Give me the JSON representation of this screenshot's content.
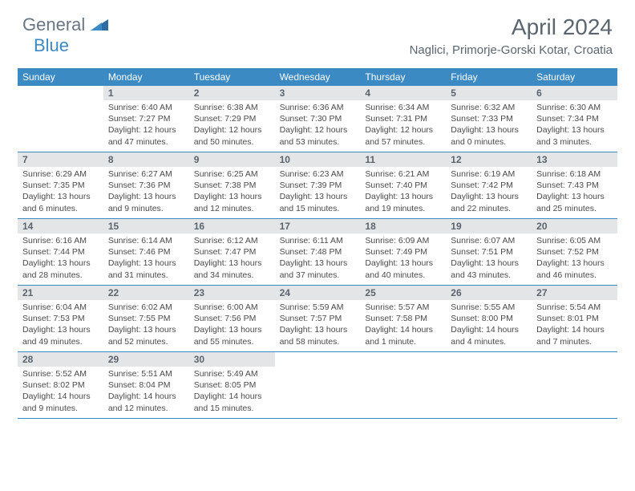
{
  "logo": {
    "text1": "General",
    "text2": "Blue"
  },
  "title": "April 2024",
  "location": "Naglici, Primorje-Gorski Kotar, Croatia",
  "colors": {
    "header_bg": "#3b8ac4",
    "header_text": "#ffffff",
    "day_num_bg": "#e3e5e7",
    "day_num_text": "#5a6570",
    "body_text": "#4a4a4a",
    "title_text": "#5a6570",
    "logo_gray": "#687684",
    "logo_blue": "#3b8ac4",
    "row_border": "#3b8ac4"
  },
  "dayNames": [
    "Sunday",
    "Monday",
    "Tuesday",
    "Wednesday",
    "Thursday",
    "Friday",
    "Saturday"
  ],
  "weeks": [
    [
      {
        "num": "",
        "lines": []
      },
      {
        "num": "1",
        "lines": [
          "Sunrise: 6:40 AM",
          "Sunset: 7:27 PM",
          "Daylight: 12 hours",
          "and 47 minutes."
        ]
      },
      {
        "num": "2",
        "lines": [
          "Sunrise: 6:38 AM",
          "Sunset: 7:29 PM",
          "Daylight: 12 hours",
          "and 50 minutes."
        ]
      },
      {
        "num": "3",
        "lines": [
          "Sunrise: 6:36 AM",
          "Sunset: 7:30 PM",
          "Daylight: 12 hours",
          "and 53 minutes."
        ]
      },
      {
        "num": "4",
        "lines": [
          "Sunrise: 6:34 AM",
          "Sunset: 7:31 PM",
          "Daylight: 12 hours",
          "and 57 minutes."
        ]
      },
      {
        "num": "5",
        "lines": [
          "Sunrise: 6:32 AM",
          "Sunset: 7:33 PM",
          "Daylight: 13 hours",
          "and 0 minutes."
        ]
      },
      {
        "num": "6",
        "lines": [
          "Sunrise: 6:30 AM",
          "Sunset: 7:34 PM",
          "Daylight: 13 hours",
          "and 3 minutes."
        ]
      }
    ],
    [
      {
        "num": "7",
        "lines": [
          "Sunrise: 6:29 AM",
          "Sunset: 7:35 PM",
          "Daylight: 13 hours",
          "and 6 minutes."
        ]
      },
      {
        "num": "8",
        "lines": [
          "Sunrise: 6:27 AM",
          "Sunset: 7:36 PM",
          "Daylight: 13 hours",
          "and 9 minutes."
        ]
      },
      {
        "num": "9",
        "lines": [
          "Sunrise: 6:25 AM",
          "Sunset: 7:38 PM",
          "Daylight: 13 hours",
          "and 12 minutes."
        ]
      },
      {
        "num": "10",
        "lines": [
          "Sunrise: 6:23 AM",
          "Sunset: 7:39 PM",
          "Daylight: 13 hours",
          "and 15 minutes."
        ]
      },
      {
        "num": "11",
        "lines": [
          "Sunrise: 6:21 AM",
          "Sunset: 7:40 PM",
          "Daylight: 13 hours",
          "and 19 minutes."
        ]
      },
      {
        "num": "12",
        "lines": [
          "Sunrise: 6:19 AM",
          "Sunset: 7:42 PM",
          "Daylight: 13 hours",
          "and 22 minutes."
        ]
      },
      {
        "num": "13",
        "lines": [
          "Sunrise: 6:18 AM",
          "Sunset: 7:43 PM",
          "Daylight: 13 hours",
          "and 25 minutes."
        ]
      }
    ],
    [
      {
        "num": "14",
        "lines": [
          "Sunrise: 6:16 AM",
          "Sunset: 7:44 PM",
          "Daylight: 13 hours",
          "and 28 minutes."
        ]
      },
      {
        "num": "15",
        "lines": [
          "Sunrise: 6:14 AM",
          "Sunset: 7:46 PM",
          "Daylight: 13 hours",
          "and 31 minutes."
        ]
      },
      {
        "num": "16",
        "lines": [
          "Sunrise: 6:12 AM",
          "Sunset: 7:47 PM",
          "Daylight: 13 hours",
          "and 34 minutes."
        ]
      },
      {
        "num": "17",
        "lines": [
          "Sunrise: 6:11 AM",
          "Sunset: 7:48 PM",
          "Daylight: 13 hours",
          "and 37 minutes."
        ]
      },
      {
        "num": "18",
        "lines": [
          "Sunrise: 6:09 AM",
          "Sunset: 7:49 PM",
          "Daylight: 13 hours",
          "and 40 minutes."
        ]
      },
      {
        "num": "19",
        "lines": [
          "Sunrise: 6:07 AM",
          "Sunset: 7:51 PM",
          "Daylight: 13 hours",
          "and 43 minutes."
        ]
      },
      {
        "num": "20",
        "lines": [
          "Sunrise: 6:05 AM",
          "Sunset: 7:52 PM",
          "Daylight: 13 hours",
          "and 46 minutes."
        ]
      }
    ],
    [
      {
        "num": "21",
        "lines": [
          "Sunrise: 6:04 AM",
          "Sunset: 7:53 PM",
          "Daylight: 13 hours",
          "and 49 minutes."
        ]
      },
      {
        "num": "22",
        "lines": [
          "Sunrise: 6:02 AM",
          "Sunset: 7:55 PM",
          "Daylight: 13 hours",
          "and 52 minutes."
        ]
      },
      {
        "num": "23",
        "lines": [
          "Sunrise: 6:00 AM",
          "Sunset: 7:56 PM",
          "Daylight: 13 hours",
          "and 55 minutes."
        ]
      },
      {
        "num": "24",
        "lines": [
          "Sunrise: 5:59 AM",
          "Sunset: 7:57 PM",
          "Daylight: 13 hours",
          "and 58 minutes."
        ]
      },
      {
        "num": "25",
        "lines": [
          "Sunrise: 5:57 AM",
          "Sunset: 7:58 PM",
          "Daylight: 14 hours",
          "and 1 minute."
        ]
      },
      {
        "num": "26",
        "lines": [
          "Sunrise: 5:55 AM",
          "Sunset: 8:00 PM",
          "Daylight: 14 hours",
          "and 4 minutes."
        ]
      },
      {
        "num": "27",
        "lines": [
          "Sunrise: 5:54 AM",
          "Sunset: 8:01 PM",
          "Daylight: 14 hours",
          "and 7 minutes."
        ]
      }
    ],
    [
      {
        "num": "28",
        "lines": [
          "Sunrise: 5:52 AM",
          "Sunset: 8:02 PM",
          "Daylight: 14 hours",
          "and 9 minutes."
        ]
      },
      {
        "num": "29",
        "lines": [
          "Sunrise: 5:51 AM",
          "Sunset: 8:04 PM",
          "Daylight: 14 hours",
          "and 12 minutes."
        ]
      },
      {
        "num": "30",
        "lines": [
          "Sunrise: 5:49 AM",
          "Sunset: 8:05 PM",
          "Daylight: 14 hours",
          "and 15 minutes."
        ]
      },
      {
        "num": "",
        "lines": []
      },
      {
        "num": "",
        "lines": []
      },
      {
        "num": "",
        "lines": []
      },
      {
        "num": "",
        "lines": []
      }
    ]
  ]
}
